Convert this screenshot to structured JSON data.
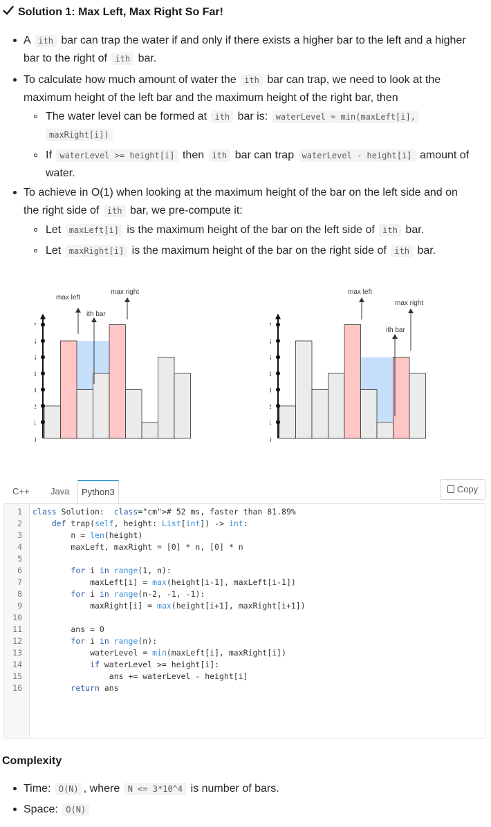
{
  "title": "Solution 1: Max Left, Max Right So Far!",
  "para1": {
    "a": "A",
    "code1": "ith",
    "b": "bar can trap the water if and only if there exists a higher bar to the left and a higher",
    "c": "bar to the right of",
    "code2": "ith",
    "d": "bar."
  },
  "para2": {
    "a": "To calculate how much amount of water the",
    "code1": "ith",
    "b": "bar can trap, we need to look at the",
    "c": "maximum height of the left bar and the maximum height of the right bar, then"
  },
  "sub1": {
    "a": "The water level can be formed at",
    "code1": "ith",
    "b": "bar is:",
    "code2": "waterLevel = min(maxLeft[i],",
    "code3": "maxRight[i])"
  },
  "sub2": {
    "a": "If",
    "code1": "waterLevel >= height[i]",
    "b": "then",
    "code2": "ith",
    "c": "bar can trap",
    "code3": "waterLevel - height[i]",
    "d": "amount of",
    "e": "water."
  },
  "para3": {
    "a": "To achieve in O(1) when looking at the maximum height of the bar on the left side and on",
    "b": "the right side of",
    "code1": "ith",
    "c": "bar, we pre-compute it:"
  },
  "sub3": {
    "a": "Let",
    "code1": "maxLeft[i]",
    "b": "is the maximum height of the bar on the left side of",
    "code2": "ith",
    "c": "bar."
  },
  "sub4": {
    "a": "Let",
    "code1": "maxRight[i]",
    "b": "is the maximum height of the bar on the right side of",
    "code2": "ith",
    "c": "bar."
  },
  "figures": {
    "fig1": {
      "max_left": "max left",
      "ith_bar": "ith bar",
      "max_right": "max right"
    },
    "fig2": {
      "max_left": "max left",
      "ith_bar": "ith bar",
      "max_right": "max right"
    },
    "y_ticks": [
      "0",
      "1",
      "2",
      "3",
      "4",
      "5",
      "6",
      "7"
    ],
    "heights": [
      2,
      6,
      3,
      4,
      7,
      3,
      1,
      5,
      4
    ],
    "colors": {
      "bar": "#ebebeb",
      "highlight": "#ffc6c6",
      "water": "#c6e0fb"
    }
  },
  "code": {
    "tabs": [
      "C++",
      "Java",
      "Python3"
    ],
    "active_tab": "Python3",
    "copy_label": "Copy",
    "lines": [
      "class Solution:  # 52 ms, faster than 81.89%",
      "    def trap(self, height: List[int]) -> int:",
      "        n = len(height)",
      "        maxLeft, maxRight = [0] * n, [0] * n",
      "",
      "        for i in range(1, n):",
      "            maxLeft[i] = max(height[i-1], maxLeft[i-1])",
      "        for i in range(n-2, -1, -1):",
      "            maxRight[i] = max(height[i+1], maxRight[i+1])",
      "",
      "        ans = 0",
      "        for i in range(n):",
      "            waterLevel = min(maxLeft[i], maxRight[i])",
      "            if waterLevel >= height[i]:",
      "                ans += waterLevel - height[i]",
      "        return ans"
    ]
  },
  "complexity": {
    "title": "Complexity",
    "time_label": "Time:",
    "time_code": "O(N)",
    "time_mid": ", where",
    "time_code2": "N <= 3*10^4",
    "time_end": "is number of bars.",
    "space_label": "Space:",
    "space_code": "O(N)"
  }
}
